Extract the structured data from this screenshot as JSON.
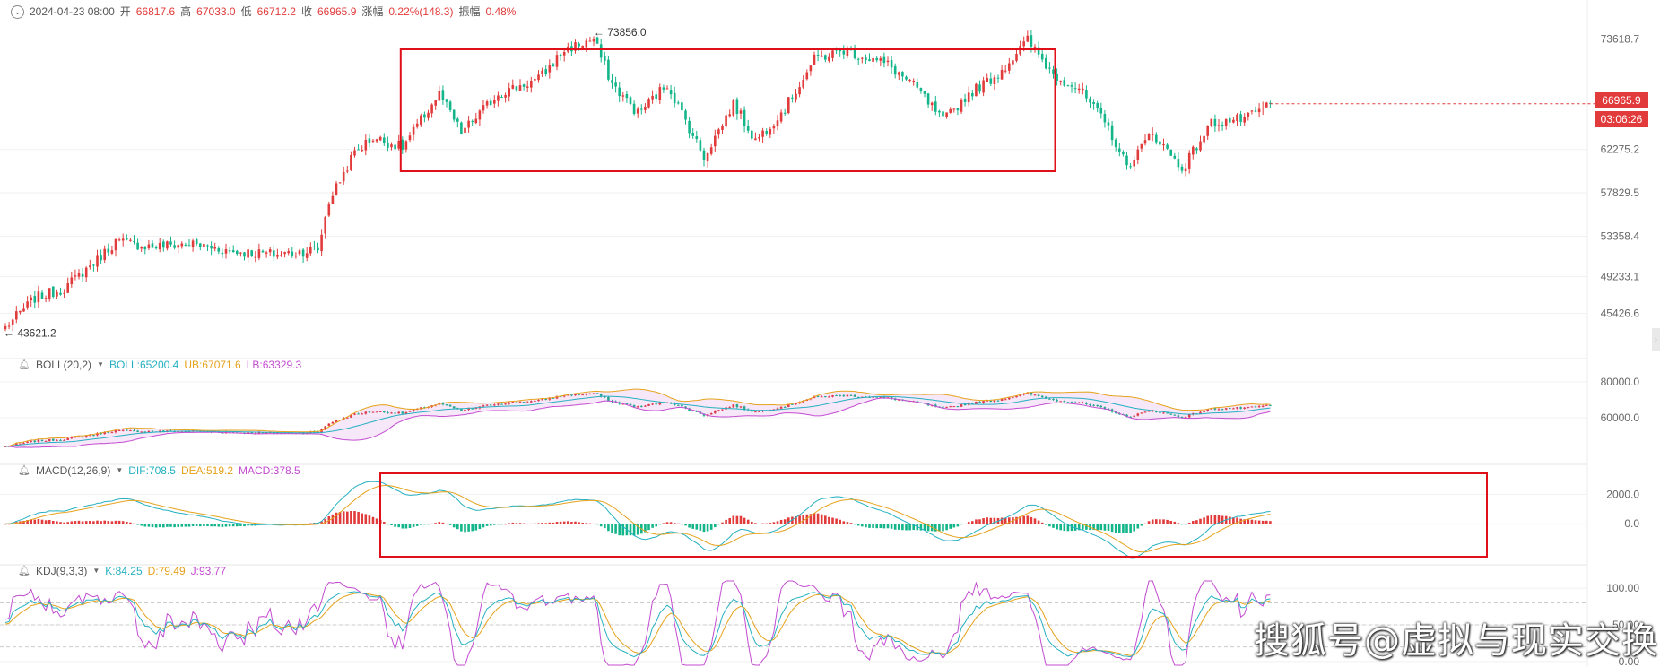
{
  "header": {
    "datetime": "2024-04-23 08:00",
    "open_label": "开",
    "open": "66817.6",
    "high_label": "高",
    "high": "67033.0",
    "low_label": "低",
    "low": "66712.2",
    "close_label": "收",
    "close": "66965.9",
    "change_label": "涨幅",
    "change": "0.22%(148.3)",
    "amp_label": "振幅",
    "amp": "0.48%"
  },
  "price_markers": {
    "last_price": "66965.9",
    "countdown": "03:06:26",
    "high_label": "← 73856.0",
    "low_label": "← 43621.2"
  },
  "indicators": {
    "boll": {
      "name": "BOLL(20,2)",
      "mid": "BOLL:65200.4",
      "ub": "UB:67071.6",
      "lb": "LB:63329.3"
    },
    "macd": {
      "name": "MACD(12,26,9)",
      "dif": "DIF:708.5",
      "dea": "DEA:519.2",
      "macd": "MACD:378.5"
    },
    "kdj": {
      "name": "KDJ(9,3,3)",
      "k": "K:84.25",
      "d": "D:79.49",
      "j": "J:93.77"
    }
  },
  "watermark": "搜狐号@虚拟与现实交换",
  "colors": {
    "up": "#e23b3b",
    "down": "#13b58a",
    "box": "#e0101a",
    "mid": "#25b0c0",
    "ub": "#e6a21c",
    "lb": "#c34bd1"
  },
  "chart_data": [
    {
      "type": "candlestick",
      "title": "",
      "y_ticks": [
        "73618.7",
        "62275.2",
        "57829.5",
        "53358.4",
        "49233.1",
        "45426.6"
      ],
      "ylim": [
        43000,
        74500
      ],
      "last_price": 66965.9,
      "high_annotation": 73856.0,
      "low_annotation": 43621.2,
      "annotation_box": {
        "from_index": 108,
        "to_index": 285,
        "y_low": 59500,
        "y_high": 74400
      },
      "close_anchors": [
        {
          "i": 0,
          "v": 44000
        },
        {
          "i": 8,
          "v": 47000
        },
        {
          "i": 16,
          "v": 48000
        },
        {
          "i": 25,
          "v": 51000
        },
        {
          "i": 30,
          "v": 52800
        },
        {
          "i": 40,
          "v": 52300
        },
        {
          "i": 50,
          "v": 52600
        },
        {
          "i": 62,
          "v": 51800
        },
        {
          "i": 74,
          "v": 51500
        },
        {
          "i": 85,
          "v": 52000
        },
        {
          "i": 88,
          "v": 57000
        },
        {
          "i": 95,
          "v": 62000
        },
        {
          "i": 100,
          "v": 63500
        },
        {
          "i": 108,
          "v": 62500
        },
        {
          "i": 118,
          "v": 68000
        },
        {
          "i": 124,
          "v": 64000
        },
        {
          "i": 134,
          "v": 68000
        },
        {
          "i": 145,
          "v": 69500
        },
        {
          "i": 152,
          "v": 72500
        },
        {
          "i": 160,
          "v": 73600
        },
        {
          "i": 165,
          "v": 69000
        },
        {
          "i": 172,
          "v": 66000
        },
        {
          "i": 180,
          "v": 69000
        },
        {
          "i": 190,
          "v": 61500
        },
        {
          "i": 198,
          "v": 67000
        },
        {
          "i": 204,
          "v": 63200
        },
        {
          "i": 212,
          "v": 66500
        },
        {
          "i": 220,
          "v": 71500
        },
        {
          "i": 228,
          "v": 72500
        },
        {
          "i": 240,
          "v": 71000
        },
        {
          "i": 248,
          "v": 68500
        },
        {
          "i": 255,
          "v": 65200
        },
        {
          "i": 262,
          "v": 68000
        },
        {
          "i": 270,
          "v": 70000
        },
        {
          "i": 278,
          "v": 73500
        },
        {
          "i": 285,
          "v": 70000
        },
        {
          "i": 292,
          "v": 68500
        },
        {
          "i": 300,
          "v": 64500
        },
        {
          "i": 305,
          "v": 60500
        },
        {
          "i": 312,
          "v": 64000
        },
        {
          "i": 320,
          "v": 60300
        },
        {
          "i": 328,
          "v": 65000
        },
        {
          "i": 338,
          "v": 65500
        },
        {
          "i": 344,
          "v": 66966
        }
      ]
    },
    {
      "type": "line",
      "title": "BOLL(20,2)",
      "y_ticks": [
        "80000.0",
        "60000.0"
      ],
      "ylim": [
        38000,
        84000
      ],
      "series": [
        {
          "name": "BOLL"
        },
        {
          "name": "UB"
        },
        {
          "name": "LB"
        }
      ],
      "last": {
        "mid": 65200.4,
        "ub": 67071.6,
        "lb": 63329.3
      }
    },
    {
      "type": "bar",
      "title": "MACD(12,26,9)",
      "y_ticks": [
        "2000.0",
        "0.0"
      ],
      "ylim": [
        -2300,
        3000
      ],
      "series": [
        {
          "name": "DIF"
        },
        {
          "name": "DEA"
        },
        {
          "name": "MACD"
        }
      ],
      "last": {
        "dif": 708.5,
        "dea": 519.2,
        "macd": 378.5
      },
      "annotation_box": {
        "from_index": 102,
        "to_index": 400
      }
    },
    {
      "type": "line",
      "title": "KDJ(9,3,3)",
      "y_ticks": [
        "100.00",
        "50.00",
        "0.00"
      ],
      "ylim": [
        -5,
        110
      ],
      "series": [
        {
          "name": "K"
        },
        {
          "name": "D"
        },
        {
          "name": "J"
        }
      ],
      "last": {
        "k": 84.25,
        "d": 79.49,
        "j": 93.77
      }
    }
  ]
}
